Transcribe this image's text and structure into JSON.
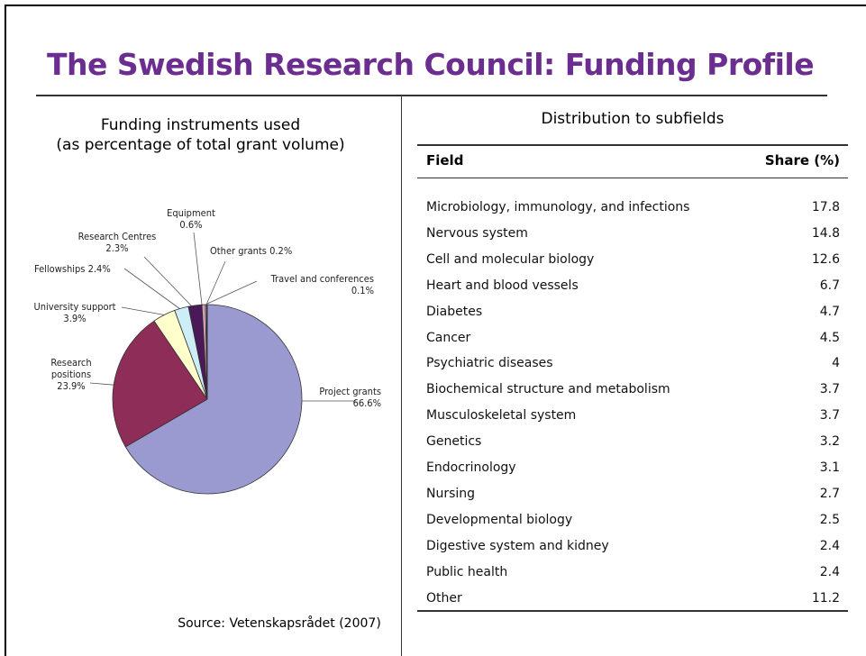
{
  "title": "The Swedish Research Council: Funding Profile",
  "chart_data": {
    "type": "pie",
    "title": [
      "Funding instruments used",
      "(as percentage of total grant volume)"
    ],
    "categories": [
      "Project grants",
      "Research positions",
      "University support",
      "Fellowships",
      "Research Centres",
      "Equipment",
      "Other grants",
      "Travel and conferences"
    ],
    "values": [
      66.6,
      23.9,
      3.9,
      2.4,
      2.3,
      0.6,
      0.2,
      0.1
    ],
    "value_labels": [
      "66.6%",
      "23.9%",
      "3.9%",
      "2.4%",
      "2.3%",
      "0.6%",
      "0.2%",
      "0.1%"
    ],
    "colors": [
      "#9a9ad0",
      "#8e2d58",
      "#ffffcc",
      "#cdeef6",
      "#4a1a58",
      "#d8a0b8",
      "#c0c0c0",
      "#e0572a"
    ]
  },
  "source": "Source: Vetenskapsrådet (2007)",
  "table": {
    "title": "Distribution to subfields",
    "header": [
      "Field",
      "Share (%)"
    ],
    "rows": [
      [
        "Microbiology, immunology, and infections",
        17.8
      ],
      [
        "Nervous system",
        14.8
      ],
      [
        "Cell and molecular biology",
        12.6
      ],
      [
        "Heart and blood vessels",
        6.7
      ],
      [
        "Diabetes",
        4.7
      ],
      [
        "Cancer",
        4.5
      ],
      [
        "Psychiatric diseases",
        4
      ],
      [
        "Biochemical structure and metabolism",
        3.7
      ],
      [
        "Musculoskeletal system",
        3.7
      ],
      [
        "Genetics",
        3.2
      ],
      [
        "Endocrinology",
        3.1
      ],
      [
        "Nursing",
        2.7
      ],
      [
        "Developmental biology",
        2.5
      ],
      [
        "Digestive system and kidney",
        2.4
      ],
      [
        "Public health",
        2.4
      ],
      [
        "Other",
        11.2
      ]
    ]
  }
}
